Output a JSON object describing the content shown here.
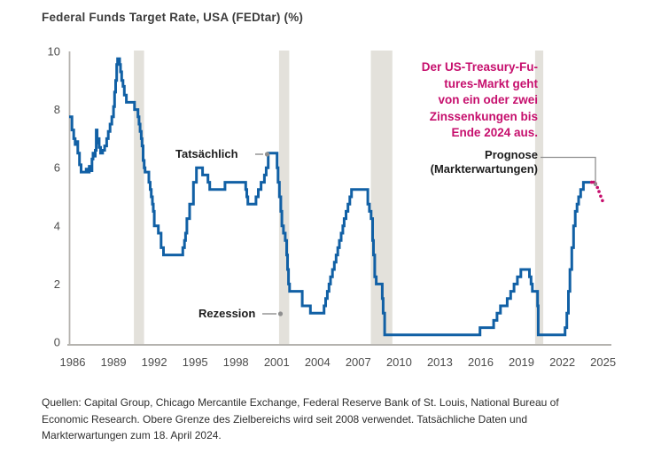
{
  "title": "Federal Funds Target Rate, USA (FEDtar) (%)",
  "annotations": {
    "actual": "Tatsächlich",
    "recession": "Rezession",
    "forecast": "Prognose\n(Markterwartungen)",
    "callout": "Der US-Treasury-Fu-\ntures-Markt geht\nvon ein oder zwei\nZinssenkungen bis\nEnde 2024 aus."
  },
  "source": "Quellen: Capital Group, Chicago Mercantile Exchange, Federal Reserve Bank of St. Louis, National Bureau of\nEconomic Research. Obere Grenze des Zielbereichs wird seit 2008 verwendet. Tatsächliche Daten und\nMarkterwartungen zum 18. April 2024.",
  "colors": {
    "actual_line": "#1160a5",
    "forecast": "#c60f6d",
    "callout_text": "#c60f6d",
    "recession_band": "#e3e1db",
    "axis": "#b5b3af",
    "tick_text": "#4c4c4c",
    "connector": "#8f8f8f"
  },
  "chart_data": {
    "type": "line",
    "title": "Federal Funds Target Rate, USA (FEDtar) (%)",
    "xlabel": "",
    "ylabel": "%",
    "ylim": [
      0,
      10
    ],
    "x_range": [
      1985.7,
      2025.6
    ],
    "grid": false,
    "legend_position": "none",
    "yticks": [
      0,
      2,
      4,
      6,
      8,
      10
    ],
    "xticks": [
      1986,
      1989,
      1992,
      1995,
      1998,
      2001,
      2004,
      2007,
      2010,
      2013,
      2016,
      2019,
      2022,
      2025
    ],
    "recession_bands": [
      [
        1990.5,
        1991.25
      ],
      [
        2001.17,
        2001.92
      ],
      [
        2007.92,
        2009.5
      ],
      [
        2020.0,
        2020.6
      ]
    ],
    "series": [
      {
        "name": "Tatsächlich",
        "style": "step-solid",
        "color": "#1160a5",
        "points": [
          [
            1985.74,
            7.75
          ],
          [
            1985.95,
            7.3
          ],
          [
            1986.08,
            7.0
          ],
          [
            1986.18,
            6.8
          ],
          [
            1986.28,
            6.9
          ],
          [
            1986.38,
            6.5
          ],
          [
            1986.5,
            6.1
          ],
          [
            1986.62,
            5.85
          ],
          [
            1987.0,
            5.95
          ],
          [
            1987.1,
            5.85
          ],
          [
            1987.22,
            6.05
          ],
          [
            1987.3,
            5.9
          ],
          [
            1987.42,
            6.3
          ],
          [
            1987.5,
            6.5
          ],
          [
            1987.58,
            6.4
          ],
          [
            1987.66,
            6.6
          ],
          [
            1987.73,
            7.3
          ],
          [
            1987.8,
            6.85
          ],
          [
            1987.88,
            7.0
          ],
          [
            1987.95,
            6.7
          ],
          [
            1988.05,
            6.5
          ],
          [
            1988.2,
            6.6
          ],
          [
            1988.35,
            6.75
          ],
          [
            1988.5,
            7.0
          ],
          [
            1988.62,
            7.25
          ],
          [
            1988.75,
            7.5
          ],
          [
            1988.88,
            7.75
          ],
          [
            1989.0,
            8.1
          ],
          [
            1989.08,
            8.6
          ],
          [
            1989.16,
            9.0
          ],
          [
            1989.24,
            9.55
          ],
          [
            1989.3,
            9.75
          ],
          [
            1989.45,
            9.55
          ],
          [
            1989.52,
            9.3
          ],
          [
            1989.6,
            9.0
          ],
          [
            1989.7,
            8.8
          ],
          [
            1989.8,
            8.5
          ],
          [
            1989.95,
            8.25
          ],
          [
            1990.55,
            8.0
          ],
          [
            1990.8,
            7.75
          ],
          [
            1990.88,
            7.5
          ],
          [
            1990.96,
            7.25
          ],
          [
            1991.04,
            7.0
          ],
          [
            1991.1,
            6.75
          ],
          [
            1991.18,
            6.25
          ],
          [
            1991.26,
            6.0
          ],
          [
            1991.32,
            5.85
          ],
          [
            1991.6,
            5.5
          ],
          [
            1991.7,
            5.25
          ],
          [
            1991.78,
            5.0
          ],
          [
            1991.86,
            4.75
          ],
          [
            1991.93,
            4.5
          ],
          [
            1992.0,
            4.0
          ],
          [
            1992.3,
            3.75
          ],
          [
            1992.5,
            3.25
          ],
          [
            1992.68,
            3.0
          ],
          [
            1994.1,
            3.25
          ],
          [
            1994.22,
            3.5
          ],
          [
            1994.3,
            3.75
          ],
          [
            1994.4,
            4.25
          ],
          [
            1994.6,
            4.75
          ],
          [
            1994.88,
            5.5
          ],
          [
            1995.1,
            6.0
          ],
          [
            1995.55,
            5.75
          ],
          [
            1995.95,
            5.5
          ],
          [
            1996.08,
            5.25
          ],
          [
            1997.2,
            5.5
          ],
          [
            1998.72,
            5.25
          ],
          [
            1998.8,
            5.0
          ],
          [
            1998.88,
            4.75
          ],
          [
            1999.48,
            5.0
          ],
          [
            1999.65,
            5.25
          ],
          [
            1999.85,
            5.5
          ],
          [
            2000.1,
            5.75
          ],
          [
            2000.23,
            6.0
          ],
          [
            2000.38,
            6.5
          ],
          [
            2001.03,
            6.0
          ],
          [
            2001.1,
            5.5
          ],
          [
            2001.2,
            5.0
          ],
          [
            2001.3,
            4.5
          ],
          [
            2001.38,
            4.0
          ],
          [
            2001.5,
            3.75
          ],
          [
            2001.63,
            3.5
          ],
          [
            2001.73,
            3.0
          ],
          [
            2001.8,
            2.5
          ],
          [
            2001.87,
            2.0
          ],
          [
            2001.95,
            1.75
          ],
          [
            2002.88,
            1.25
          ],
          [
            2003.48,
            1.0
          ],
          [
            2004.48,
            1.25
          ],
          [
            2004.6,
            1.5
          ],
          [
            2004.72,
            1.75
          ],
          [
            2004.85,
            2.0
          ],
          [
            2004.96,
            2.25
          ],
          [
            2005.1,
            2.5
          ],
          [
            2005.24,
            2.75
          ],
          [
            2005.37,
            3.0
          ],
          [
            2005.49,
            3.25
          ],
          [
            2005.61,
            3.5
          ],
          [
            2005.74,
            3.75
          ],
          [
            2005.86,
            4.0
          ],
          [
            2005.96,
            4.25
          ],
          [
            2006.1,
            4.5
          ],
          [
            2006.24,
            4.75
          ],
          [
            2006.38,
            5.0
          ],
          [
            2006.5,
            5.25
          ],
          [
            2007.7,
            4.75
          ],
          [
            2007.82,
            4.5
          ],
          [
            2007.94,
            4.25
          ],
          [
            2008.05,
            3.5
          ],
          [
            2008.12,
            3.0
          ],
          [
            2008.21,
            2.25
          ],
          [
            2008.32,
            2.0
          ],
          [
            2008.76,
            1.5
          ],
          [
            2008.83,
            1.0
          ],
          [
            2008.94,
            0.25
          ],
          [
            2015.95,
            0.5
          ],
          [
            2016.95,
            0.75
          ],
          [
            2017.2,
            1.0
          ],
          [
            2017.45,
            1.25
          ],
          [
            2017.95,
            1.5
          ],
          [
            2018.2,
            1.75
          ],
          [
            2018.45,
            2.0
          ],
          [
            2018.7,
            2.25
          ],
          [
            2018.95,
            2.5
          ],
          [
            2019.58,
            2.25
          ],
          [
            2019.7,
            2.0
          ],
          [
            2019.8,
            1.75
          ],
          [
            2020.18,
            1.25
          ],
          [
            2020.23,
            0.25
          ],
          [
            2022.2,
            0.5
          ],
          [
            2022.33,
            1.0
          ],
          [
            2022.45,
            1.75
          ],
          [
            2022.56,
            2.5
          ],
          [
            2022.7,
            3.25
          ],
          [
            2022.83,
            4.0
          ],
          [
            2022.95,
            4.5
          ],
          [
            2023.08,
            4.75
          ],
          [
            2023.2,
            5.0
          ],
          [
            2023.35,
            5.25
          ],
          [
            2023.55,
            5.5
          ],
          [
            2024.05,
            5.5
          ]
        ]
      },
      {
        "name": "Prognose (Markterwartungen)",
        "style": "dotted",
        "color": "#c60f6d",
        "points": [
          [
            2024.15,
            5.5
          ],
          [
            2024.3,
            5.5
          ],
          [
            2024.45,
            5.45
          ],
          [
            2024.58,
            5.32
          ],
          [
            2024.7,
            5.18
          ],
          [
            2024.82,
            5.02
          ],
          [
            2024.95,
            4.87
          ]
        ]
      }
    ]
  }
}
